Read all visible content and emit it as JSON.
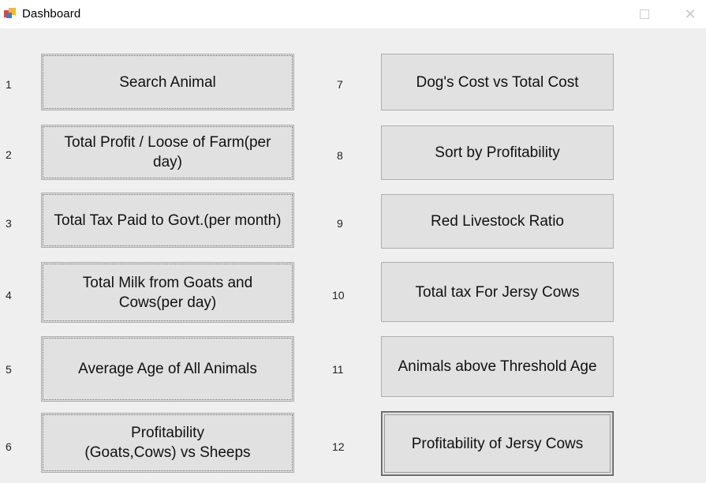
{
  "window": {
    "title": "Dashboard"
  },
  "left_column": [
    {
      "number": "1",
      "label": "Search Animal"
    },
    {
      "number": "2",
      "label": "Total Profit / Loose of Farm(per day)"
    },
    {
      "number": "3",
      "label": "Total Tax Paid to Govt.(per month)"
    },
    {
      "number": "4",
      "label": "Total Milk from Goats and Cows(per day)"
    },
    {
      "number": "5",
      "label": "Average Age of All Animals"
    },
    {
      "number": "6",
      "label": "Profitability\n(Goats,Cows) vs Sheeps"
    }
  ],
  "right_column": [
    {
      "number": "7",
      "label": "Dog's Cost vs Total Cost"
    },
    {
      "number": "8",
      "label": "Sort by Profitability"
    },
    {
      "number": "9",
      "label": "Red Livestock Ratio"
    },
    {
      "number": "10",
      "label": "Total tax For Jersy Cows"
    },
    {
      "number": "11",
      "label": "Animals above Threshold Age"
    },
    {
      "number": "12",
      "label": "Profitability of Jersy Cows"
    }
  ]
}
